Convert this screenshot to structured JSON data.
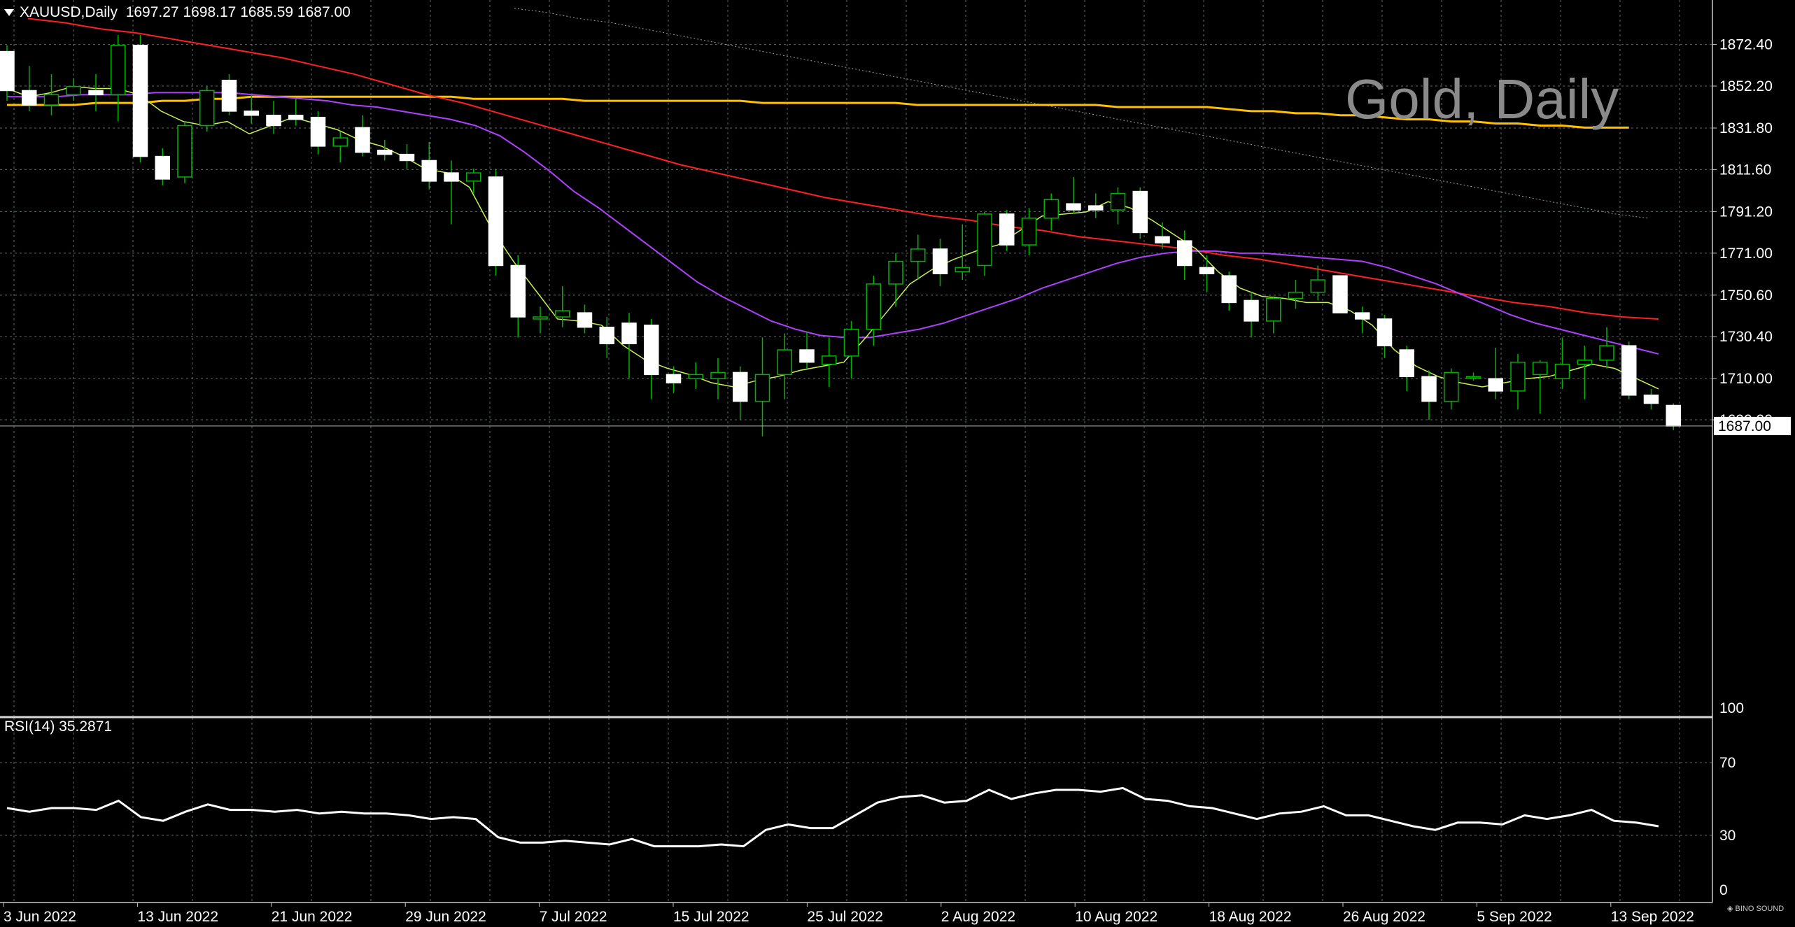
{
  "header": {
    "symbol": "XAUUSD,Daily",
    "ohlc": "1697.27 1698.17 1685.59 1687.00"
  },
  "watermark": "Gold, Daily",
  "rsi_label": "RSI(14) 35.2871",
  "price_tag": "1687.00",
  "logo_text": "BINO SOUND",
  "colors": {
    "background": "#000000",
    "grid": "#5a6a6a",
    "axis": "#c8c8c8",
    "bull": "#00b400",
    "bear_body": "#ffffff",
    "ma_fast": "#c8f050",
    "ma_mid": "#b040ff",
    "ma_red": "#ff2020",
    "ma_gold": "#ffc000",
    "ma_dotted": "#a0a0a0",
    "rsi": "#ffffff"
  },
  "chart_data": [
    {
      "type": "candlestick",
      "title": "XAUUSD,Daily",
      "ylim": [
        1675,
        1885
      ],
      "yticks": [
        "1872.40",
        "1852.20",
        "1831.80",
        "1811.60",
        "1791.20",
        "1771.00",
        "1750.60",
        "1730.40",
        "1710.00",
        "1690.00"
      ],
      "x_labels": [
        {
          "index": 0,
          "label": "3 Jun 2022"
        },
        {
          "index": 6,
          "label": "13 Jun 2022"
        },
        {
          "index": 12,
          "label": "21 Jun 2022"
        },
        {
          "index": 18,
          "label": "29 Jun 2022"
        },
        {
          "index": 24,
          "label": "7 Jul 2022"
        },
        {
          "index": 30,
          "label": "15 Jul 2022"
        },
        {
          "index": 36,
          "label": "25 Jul 2022"
        },
        {
          "index": 42,
          "label": "2 Aug 2022"
        },
        {
          "index": 48,
          "label": "10 Aug 2022"
        },
        {
          "index": 54,
          "label": "18 Aug 2022"
        },
        {
          "index": 60,
          "label": "26 Aug 2022"
        },
        {
          "index": 66,
          "label": "5 Sep 2022"
        },
        {
          "index": 72,
          "label": "13 Sep 2022"
        }
      ],
      "ohlc": [
        [
          1869,
          1872,
          1845,
          1850
        ],
        [
          1850,
          1862,
          1840,
          1843
        ],
        [
          1843,
          1858,
          1838,
          1848
        ],
        [
          1848,
          1856,
          1845,
          1852
        ],
        [
          1850,
          1858,
          1840,
          1848
        ],
        [
          1848,
          1877,
          1835,
          1872
        ],
        [
          1872,
          1877,
          1815,
          1818
        ],
        [
          1818,
          1822,
          1804,
          1807
        ],
        [
          1808,
          1835,
          1805,
          1833
        ],
        [
          1833,
          1852,
          1830,
          1850
        ],
        [
          1855,
          1858,
          1838,
          1840
        ],
        [
          1840,
          1848,
          1834,
          1838
        ],
        [
          1838,
          1845,
          1829,
          1833
        ],
        [
          1838,
          1846,
          1833,
          1836
        ],
        [
          1837,
          1840,
          1819,
          1823
        ],
        [
          1823,
          1830,
          1815,
          1827
        ],
        [
          1832,
          1838,
          1818,
          1820
        ],
        [
          1821,
          1826,
          1816,
          1819
        ],
        [
          1819,
          1824,
          1812,
          1816
        ],
        [
          1816,
          1825,
          1802,
          1806
        ],
        [
          1810,
          1816,
          1785,
          1806
        ],
        [
          1806,
          1812,
          1800,
          1810
        ],
        [
          1808,
          1812,
          1760,
          1765
        ],
        [
          1765,
          1770,
          1730,
          1740
        ],
        [
          1739,
          1745,
          1732,
          1740
        ],
        [
          1740,
          1755,
          1735,
          1743
        ],
        [
          1742,
          1746,
          1732,
          1735
        ],
        [
          1735,
          1740,
          1720,
          1727
        ],
        [
          1737,
          1742,
          1710,
          1727
        ],
        [
          1736,
          1739,
          1700,
          1712
        ],
        [
          1712,
          1716,
          1703,
          1708
        ],
        [
          1710,
          1718,
          1705,
          1712
        ],
        [
          1710,
          1720,
          1700,
          1713
        ],
        [
          1713,
          1716,
          1690,
          1699
        ],
        [
          1699,
          1730,
          1682,
          1712
        ],
        [
          1712,
          1732,
          1700,
          1724
        ],
        [
          1724,
          1733,
          1715,
          1718
        ],
        [
          1717,
          1730,
          1706,
          1721
        ],
        [
          1721,
          1738,
          1710,
          1734
        ],
        [
          1734,
          1760,
          1726,
          1756
        ],
        [
          1756,
          1771,
          1745,
          1767
        ],
        [
          1767,
          1780,
          1758,
          1773
        ],
        [
          1773,
          1778,
          1755,
          1761
        ],
        [
          1762,
          1785,
          1758,
          1764
        ],
        [
          1765,
          1791,
          1760,
          1790
        ],
        [
          1790,
          1792,
          1772,
          1775
        ],
        [
          1775,
          1793,
          1770,
          1788
        ],
        [
          1788,
          1800,
          1782,
          1797
        ],
        [
          1795,
          1808,
          1790,
          1792
        ],
        [
          1794,
          1800,
          1788,
          1792
        ],
        [
          1792,
          1803,
          1785,
          1800
        ],
        [
          1801,
          1803,
          1778,
          1781
        ],
        [
          1779,
          1786,
          1773,
          1776
        ],
        [
          1777,
          1782,
          1758,
          1765
        ],
        [
          1764,
          1770,
          1752,
          1761
        ],
        [
          1760,
          1762,
          1743,
          1747
        ],
        [
          1748,
          1752,
          1730,
          1738
        ],
        [
          1738,
          1750,
          1732,
          1749
        ],
        [
          1749,
          1758,
          1744,
          1752
        ],
        [
          1752,
          1765,
          1748,
          1758
        ],
        [
          1760,
          1760,
          1742,
          1742
        ],
        [
          1742,
          1745,
          1732,
          1739
        ],
        [
          1739,
          1741,
          1720,
          1726
        ],
        [
          1724,
          1726,
          1704,
          1711
        ],
        [
          1711,
          1714,
          1690,
          1699
        ],
        [
          1699,
          1715,
          1695,
          1713
        ],
        [
          1711,
          1713,
          1709,
          1711
        ],
        [
          1710,
          1725,
          1700,
          1704
        ],
        [
          1704,
          1722,
          1695,
          1718
        ],
        [
          1712,
          1719,
          1693,
          1718
        ],
        [
          1710,
          1730,
          1705,
          1717
        ],
        [
          1717,
          1726,
          1700,
          1719
        ],
        [
          1719,
          1735,
          1715,
          1726
        ],
        [
          1726,
          1728,
          1700,
          1702
        ],
        [
          1702,
          1705,
          1695,
          1698
        ],
        [
          1697,
          1698,
          1685,
          1687
        ]
      ],
      "ma_fast": [
        1851,
        1847,
        1849,
        1852,
        1851,
        1851,
        1848,
        1840,
        1835,
        1833,
        1835,
        1829,
        1833,
        1837,
        1834,
        1831,
        1826,
        1823,
        1818,
        1812,
        1810,
        1803,
        1783,
        1767,
        1753,
        1739,
        1738,
        1736,
        1726,
        1719,
        1715,
        1712,
        1708,
        1706,
        1709,
        1711,
        1714,
        1716,
        1718,
        1730,
        1743,
        1756,
        1763,
        1768,
        1772,
        1775,
        1782,
        1789,
        1790,
        1791,
        1796,
        1793,
        1787,
        1780,
        1773,
        1762,
        1754,
        1750,
        1749,
        1747,
        1747,
        1743,
        1736,
        1724,
        1716,
        1711,
        1708,
        1706,
        1708,
        1710,
        1711,
        1714,
        1717,
        1715,
        1710,
        1705
      ],
      "ma_mid": [
        1847,
        1847,
        1847,
        1848,
        1848,
        1848,
        1849,
        1849,
        1849,
        1849,
        1848,
        1847,
        1846,
        1845,
        1843,
        1842,
        1840,
        1838,
        1836,
        1833,
        1828,
        1820,
        1811,
        1801,
        1793,
        1784,
        1775,
        1766,
        1757,
        1750,
        1744,
        1738,
        1734,
        1731,
        1730,
        1730,
        1732,
        1734,
        1737,
        1741,
        1745,
        1749,
        1754,
        1758,
        1762,
        1766,
        1769,
        1771,
        1772,
        1772,
        1771,
        1771,
        1770,
        1769,
        1768,
        1767,
        1764,
        1760,
        1756,
        1751,
        1746,
        1741,
        1737,
        1734,
        1731,
        1728,
        1725,
        1722
      ],
      "ma_red": [
        1885,
        1883,
        1880,
        1878,
        1875,
        1872,
        1869,
        1866,
        1862,
        1858,
        1853,
        1848,
        1844,
        1839,
        1834,
        1829,
        1824,
        1819,
        1814,
        1810,
        1806,
        1802,
        1798,
        1795,
        1792,
        1789,
        1787,
        1784,
        1782,
        1779,
        1777,
        1775,
        1773,
        1770,
        1768,
        1765,
        1762,
        1759,
        1756,
        1753,
        1750,
        1747,
        1745,
        1742,
        1740,
        1739
      ],
      "ma_gold": [
        1843,
        1843,
        1843,
        1843,
        1844,
        1844,
        1844,
        1845,
        1845,
        1846,
        1846,
        1847,
        1847,
        1847,
        1847,
        1847,
        1847,
        1847,
        1847,
        1847,
        1847,
        1846,
        1846,
        1846,
        1846,
        1846,
        1845,
        1845,
        1845,
        1845,
        1845,
        1845,
        1845,
        1845,
        1844,
        1844,
        1844,
        1844,
        1844,
        1844,
        1844,
        1843,
        1843,
        1843,
        1843,
        1843,
        1843,
        1843,
        1843,
        1843,
        1842,
        1842,
        1842,
        1842,
        1842,
        1841,
        1840,
        1840,
        1839,
        1839,
        1838,
        1838,
        1837,
        1836,
        1836,
        1835,
        1835,
        1834,
        1834,
        1833,
        1833,
        1832,
        1832,
        1832
      ],
      "ma_dotted": [
        1890,
        1888,
        1885,
        1883,
        1880,
        1877,
        1874,
        1871,
        1868,
        1865,
        1862,
        1859,
        1856,
        1853,
        1850,
        1847,
        1844,
        1841,
        1838,
        1835,
        1832,
        1829,
        1826,
        1823,
        1820,
        1817,
        1814,
        1811,
        1808,
        1805,
        1802,
        1799,
        1796,
        1793,
        1790,
        1788
      ]
    },
    {
      "type": "line",
      "title": "RSI(14) 35.2871",
      "ylim": [
        0,
        100
      ],
      "yticks": [
        "100",
        "70",
        "30",
        "0"
      ],
      "values": [
        45,
        43,
        45,
        45,
        44,
        49,
        40,
        38,
        43,
        47,
        44,
        44,
        43,
        44,
        42,
        43,
        42,
        42,
        41,
        39,
        40,
        39,
        29,
        26,
        26,
        27,
        26,
        25,
        28,
        24,
        24,
        24,
        25,
        24,
        33,
        36,
        34,
        34,
        41,
        48,
        51,
        52,
        48,
        49,
        55,
        50,
        53,
        55,
        55,
        54,
        56,
        50,
        49,
        46,
        45,
        42,
        39,
        42,
        43,
        46,
        41,
        41,
        38,
        35,
        33,
        37,
        37,
        36,
        41,
        39,
        41,
        44,
        38,
        37,
        35
      ]
    }
  ]
}
